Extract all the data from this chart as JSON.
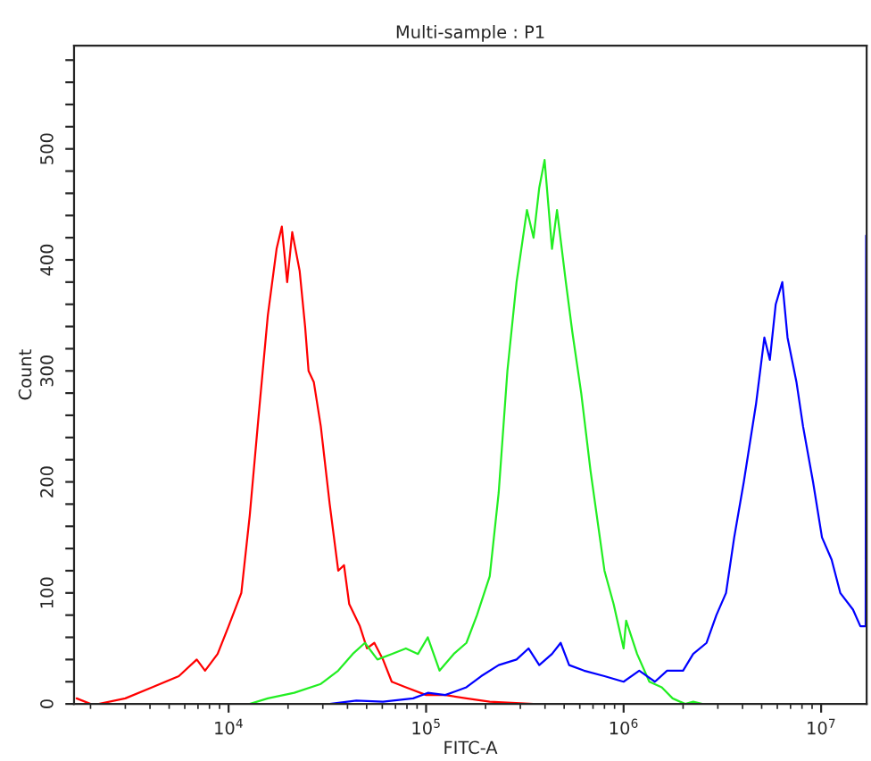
{
  "chart_data": {
    "type": "line",
    "title": "Multi-sample : P1",
    "xlabel": "FITC-A",
    "ylabel": "Count",
    "log": "x",
    "grid": false,
    "xlim": [
      1650,
      17000000
    ],
    "xticks": [
      {
        "value": 10000,
        "label": "10$^{4}$"
      },
      {
        "value": 100000,
        "label": "10$^{5}$"
      },
      {
        "value": 1000000,
        "label": "10$^{6}$"
      },
      {
        "value": 10000000,
        "label": "10$^{7}$"
      }
    ],
    "ylim": [
      0,
      593
    ],
    "yticks": [
      0,
      {
        "value": 20,
        "label": null
      },
      {
        "value": 40,
        "label": null
      },
      {
        "value": 60,
        "label": null
      },
      {
        "value": 80,
        "label": null
      },
      100,
      {
        "value": 120,
        "label": null
      },
      {
        "value": 140,
        "label": null
      },
      {
        "value": 160,
        "label": null
      },
      {
        "value": 180,
        "label": null
      },
      200,
      {
        "value": 220,
        "label": null
      },
      {
        "value": 240,
        "label": null
      },
      {
        "value": 260,
        "label": null
      },
      {
        "value": 280,
        "label": null
      },
      300,
      {
        "value": 320,
        "label": null
      },
      {
        "value": 340,
        "label": null
      },
      {
        "value": 360,
        "label": null
      },
      {
        "value": 380,
        "label": null
      },
      400,
      {
        "value": 420,
        "label": null
      },
      {
        "value": 440,
        "label": null
      },
      {
        "value": 460,
        "label": null
      },
      {
        "value": 480,
        "label": null
      },
      500,
      {
        "value": 520,
        "label": null
      },
      {
        "value": 540,
        "label": null
      },
      {
        "value": 560,
        "label": null
      },
      {
        "value": 580,
        "label": null
      }
    ],
    "series": [
      {
        "color": "#ff0000",
        "x": [
          1700,
          2000,
          2200,
          3000,
          4100,
          5600,
          6900,
          7600,
          8800,
          10000,
          11600,
          12800,
          14200,
          15800,
          17500,
          18600,
          19800,
          21000,
          22900,
          24400,
          25400,
          27000,
          29300,
          32500,
          35900,
          38400,
          40800,
          46200,
          50200,
          54700,
          60500,
          67000,
          79000,
          100000,
          125000,
          160000,
          210000,
          350000
        ],
        "values": [
          5,
          0,
          0,
          5,
          15,
          25,
          40,
          30,
          45,
          70,
          100,
          170,
          260,
          350,
          410,
          430,
          380,
          425,
          390,
          340,
          300,
          290,
          250,
          180,
          120,
          125,
          90,
          70,
          50,
          55,
          40,
          20,
          15,
          8,
          8,
          5,
          2,
          0
        ]
      },
      {
        "color": "#22ee22",
        "x": [
          12800,
          15800,
          21500,
          29300,
          35900,
          42500,
          49000,
          56700,
          67000,
          79000,
          91000,
          102000,
          117000,
          138000,
          160000,
          181000,
          210000,
          233000,
          258000,
          287000,
          324000,
          350000,
          374000,
          398000,
          434000,
          460000,
          510000,
          550000,
          610000,
          680000,
          800000,
          890000,
          1000000,
          1030000,
          1170000,
          1350000,
          1560000,
          1770000,
          2050000,
          2250000,
          2500000
        ],
        "values": [
          0,
          5,
          10,
          18,
          30,
          45,
          55,
          40,
          45,
          50,
          45,
          60,
          30,
          45,
          55,
          80,
          115,
          190,
          300,
          380,
          445,
          420,
          465,
          490,
          410,
          445,
          380,
          335,
          280,
          210,
          120,
          90,
          50,
          75,
          45,
          20,
          15,
          5,
          0,
          2,
          0
        ]
      },
      {
        "color": "#0000ff",
        "x": [
          32500,
          44300,
          60500,
          86000,
          102000,
          125000,
          160000,
          190000,
          233000,
          287000,
          330000,
          374000,
          434000,
          480000,
          530000,
          630000,
          800000,
          1000000,
          1200000,
          1440000,
          1660000,
          2000000,
          2250000,
          2630000,
          2950000,
          3300000,
          3630000,
          4060000,
          4680000,
          5160000,
          5500000,
          5890000,
          6360000,
          6760000,
          7500000,
          8100000,
          9100000,
          10100000,
          11300000,
          12500000,
          14500000,
          15800000,
          16800000,
          16900000
        ],
        "values": [
          0,
          3,
          2,
          5,
          10,
          8,
          15,
          25,
          35,
          40,
          50,
          35,
          45,
          55,
          35,
          30,
          25,
          20,
          30,
          20,
          30,
          30,
          45,
          55,
          80,
          100,
          150,
          200,
          270,
          330,
          310,
          360,
          380,
          330,
          290,
          250,
          200,
          150,
          130,
          100,
          85,
          70,
          70,
          422
        ]
      }
    ]
  }
}
